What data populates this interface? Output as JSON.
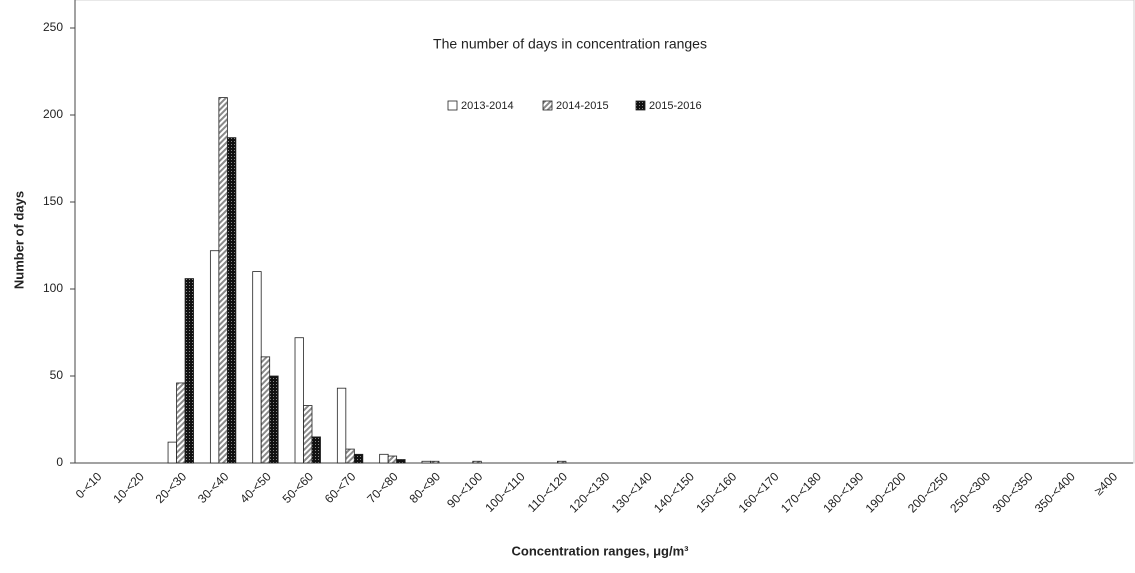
{
  "chart_data": {
    "type": "bar",
    "title": "The number of days in concentration ranges",
    "x_label": "Concentration ranges, μg/m³",
    "y_label": "Number of days",
    "categories": [
      "0-<10",
      "10-<20",
      "20-<30",
      "30-<40",
      "40-<50",
      "50-<60",
      "60-<70",
      "70-<80",
      "80-<90",
      "90-<100",
      "100-<110",
      "110-<120",
      "120-<130",
      "130-<140",
      "140-<150",
      "150-<160",
      "160-<170",
      "170-<180",
      "180-<190",
      "190-<200",
      "200-<250",
      "250-<300",
      "300-<350",
      "350-<400",
      "≥400"
    ],
    "series": [
      {
        "name": "2013-2014",
        "color": "#ffffff",
        "values": [
          0,
          0,
          12,
          122,
          110,
          72,
          43,
          5,
          1,
          0,
          0,
          0,
          0,
          0,
          0,
          0,
          0,
          0,
          0,
          0,
          0,
          0,
          0,
          0,
          0
        ]
      },
      {
        "name": "2014-2015",
        "color": "#bfbfbf",
        "values": [
          0,
          0,
          46,
          210,
          61,
          33,
          8,
          4,
          1,
          1,
          0,
          1,
          0,
          0,
          0,
          0,
          0,
          0,
          0,
          0,
          0,
          0,
          0,
          0,
          0
        ]
      },
      {
        "name": "2015-2016",
        "color": "#222222",
        "values": [
          0,
          0,
          106,
          187,
          50,
          15,
          5,
          2,
          0,
          0,
          0,
          0,
          0,
          0,
          0,
          0,
          0,
          0,
          0,
          0,
          0,
          0,
          0,
          0,
          0
        ]
      }
    ],
    "ylim": [
      0,
      250
    ],
    "yticks": [
      0,
      50,
      100,
      150,
      200,
      250
    ],
    "legend": "top"
  }
}
